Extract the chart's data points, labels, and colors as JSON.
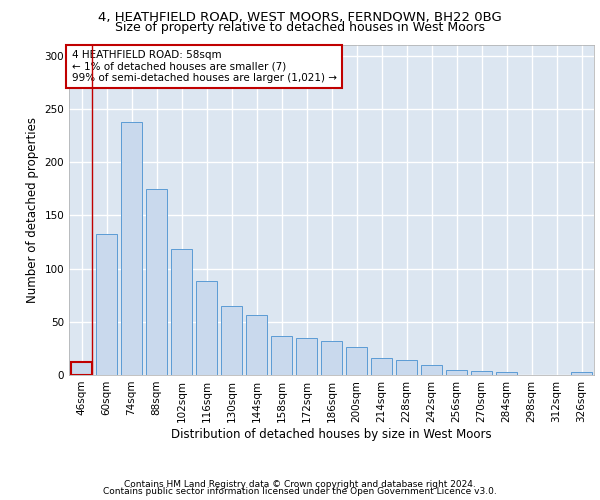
{
  "title_line1": "4, HEATHFIELD ROAD, WEST MOORS, FERNDOWN, BH22 0BG",
  "title_line2": "Size of property relative to detached houses in West Moors",
  "xlabel": "Distribution of detached houses by size in West Moors",
  "ylabel": "Number of detached properties",
  "footer_line1": "Contains HM Land Registry data © Crown copyright and database right 2024.",
  "footer_line2": "Contains public sector information licensed under the Open Government Licence v3.0.",
  "categories": [
    "46sqm",
    "60sqm",
    "74sqm",
    "88sqm",
    "102sqm",
    "116sqm",
    "130sqm",
    "144sqm",
    "158sqm",
    "172sqm",
    "186sqm",
    "200sqm",
    "214sqm",
    "228sqm",
    "242sqm",
    "256sqm",
    "270sqm",
    "284sqm",
    "298sqm",
    "312sqm",
    "326sqm"
  ],
  "values": [
    12,
    132,
    238,
    175,
    118,
    88,
    65,
    56,
    37,
    35,
    32,
    26,
    16,
    14,
    9,
    5,
    4,
    3,
    0,
    0,
    3
  ],
  "bar_color": "#c9d9ed",
  "bar_edge_color": "#5b9bd5",
  "highlight_bar_edge_color": "#c00000",
  "highlight_bar_index": 0,
  "annotation_text": "4 HEATHFIELD ROAD: 58sqm\n← 1% of detached houses are smaller (7)\n99% of semi-detached houses are larger (1,021) →",
  "annotation_box_color": "#ffffff",
  "annotation_box_edge_color": "#c00000",
  "ylim": [
    0,
    310
  ],
  "yticks": [
    0,
    50,
    100,
    150,
    200,
    250,
    300
  ],
  "bg_color": "#ffffff",
  "plot_bg_color": "#dce6f1",
  "grid_color": "#ffffff",
  "title_fontsize": 9.5,
  "subtitle_fontsize": 9,
  "tick_fontsize": 7.5,
  "ylabel_fontsize": 8.5,
  "xlabel_fontsize": 8.5,
  "annotation_fontsize": 7.5,
  "footer_fontsize": 6.5
}
